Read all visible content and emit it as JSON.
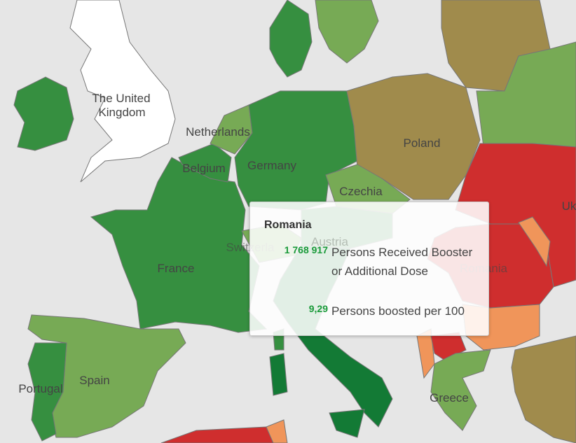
{
  "colors": {
    "background": "#e6e6e6",
    "dark_green": "#368f40",
    "deep_green": "#137a35",
    "light_green": "#77aa55",
    "olive": "#a08b4c",
    "red": "#cf2e2e",
    "orange": "#f0955a",
    "white": "#ffffff"
  },
  "map_labels": {
    "uk": "The United Kingdom",
    "uk_line1": "The United",
    "uk_line2": "Kingdom",
    "netherlands": "Netherlands",
    "belgium": "Belgium",
    "germany": "Germany",
    "poland": "Poland",
    "czechia": "Czechia",
    "ukraine": "Uk",
    "switzerland": "Switzerla",
    "france": "France",
    "austria": "Austria",
    "romania": "Romania",
    "portugal": "Portugal",
    "spain": "Spain",
    "greece": "Greece"
  },
  "tooltip": {
    "country": "Romania",
    "metrics": [
      {
        "value": "1 768 917",
        "label": "Persons Received Booster or Additional Dose"
      },
      {
        "value": "9,29",
        "label": "Persons boosted per 100"
      }
    ]
  }
}
